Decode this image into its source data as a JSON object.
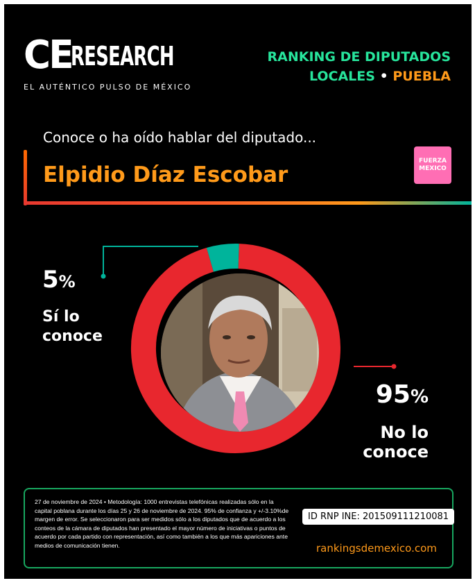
{
  "brand": {
    "logo_ce": "CE",
    "logo_research": "RESEARCH",
    "tagline": "EL AUTÉNTICO PULSO DE MÉXICO"
  },
  "headline": {
    "line1": "RANKING DE DIPUTADOS",
    "line2_a": "LOCALES",
    "line2_dot": "•",
    "line2_b": "PUEBLA"
  },
  "question": "Conoce o ha oído hablar del diputado...",
  "deputy": {
    "name": "Elpidio Díaz Escobar",
    "party_line1": "FUERZA",
    "party_line2": "MEXICO"
  },
  "results": {
    "yes_value": "5",
    "yes_unit": "%",
    "yes_label_1": "Sí lo",
    "yes_label_2": "conoce",
    "no_value": "95",
    "no_unit": "%",
    "no_label_1": "No lo",
    "no_label_2": "conoce"
  },
  "chart_data": {
    "type": "pie",
    "categories": [
      "Sí lo conoce",
      "No lo conoce"
    ],
    "values": [
      5,
      95
    ],
    "colors": [
      "#00b49b",
      "#e8272e"
    ]
  },
  "footer": {
    "methodology": "27 de noviembre de 2024 • Metodología: 1000 entrevistas telefónicas realizadas sólo en la capital poblana durante los días 25 y 26 de noviembre de 2024. 95% de confianza y +/-3.10%de margen de error. Se seleccionaron para ser medidos sólo a los diputados que de acuerdo a los conteos de la cámara de diputados han presentado el mayor número de iniciativas o puntos de acuerdo por cada partido con representación, así como también a los que más apariciones ante medios de comunicación tienen.",
    "rnp": "ID RNP INE: 201509111210081",
    "site": "rankingsdemexico.com"
  }
}
